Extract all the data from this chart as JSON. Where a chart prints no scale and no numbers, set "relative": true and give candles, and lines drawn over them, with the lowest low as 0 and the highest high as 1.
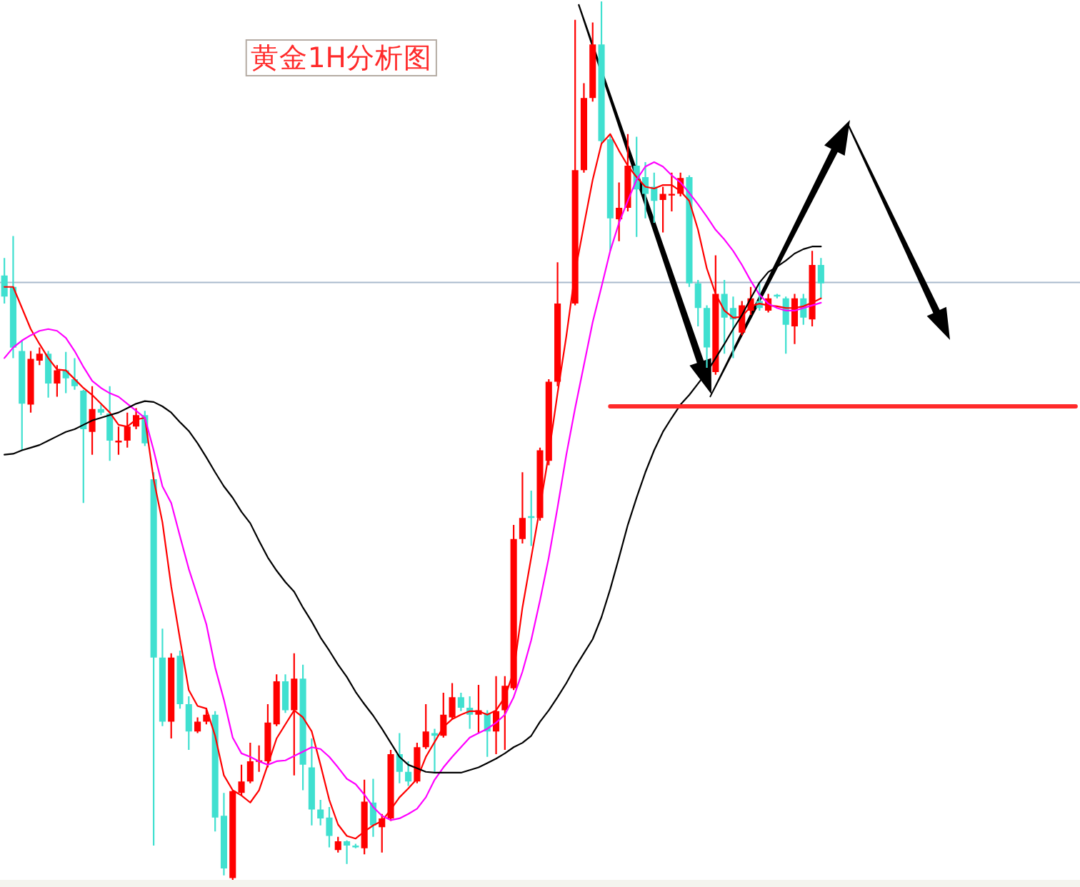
{
  "chart_data": {
    "type": "candlestick",
    "title": "黄金1H分析图",
    "relative": true,
    "categories": [
      null,
      null,
      null,
      null,
      null,
      null,
      null,
      null,
      null,
      null,
      null,
      null,
      null,
      null,
      null,
      null,
      null,
      null,
      null,
      null,
      null,
      null,
      null,
      null,
      null,
      null,
      null,
      null,
      null,
      null,
      null,
      null,
      null,
      null,
      null,
      null,
      null,
      null,
      null,
      null,
      null,
      null,
      null,
      null,
      null,
      null,
      null,
      null,
      null,
      null,
      null,
      null,
      null,
      null,
      null,
      null,
      null,
      null,
      null,
      null,
      null,
      null,
      null,
      null,
      null,
      null,
      null,
      null,
      null,
      null,
      null,
      null,
      null,
      null,
      null,
      null,
      null,
      null,
      null,
      null,
      null,
      null,
      null,
      null,
      null,
      null,
      null,
      null,
      null,
      null,
      null,
      null,
      null,
      null,
      null,
      null,
      null,
      null,
      null,
      null,
      null,
      null,
      null,
      null,
      null,
      null,
      null,
      null,
      null,
      null,
      null,
      null,
      null,
      null,
      null,
      null,
      null,
      null,
      null,
      null,
      null,
      null,
      null
    ],
    "ohlc": [
      [
        0.688,
        0.708,
        0.656,
        0.664
      ],
      [
        0.675,
        0.733,
        0.594,
        0.606
      ],
      [
        0.602,
        0.614,
        0.489,
        0.542
      ],
      [
        0.541,
        0.602,
        0.532,
        0.593
      ],
      [
        0.591,
        0.606,
        0.586,
        0.599
      ],
      [
        0.599,
        0.602,
        0.549,
        0.565
      ],
      [
        0.565,
        0.586,
        0.55,
        0.58
      ],
      [
        0.58,
        0.601,
        0.554,
        0.571
      ],
      [
        0.57,
        0.594,
        0.558,
        0.562
      ],
      [
        0.557,
        0.558,
        0.429,
        0.513
      ],
      [
        0.51,
        0.562,
        0.484,
        0.536
      ],
      [
        0.536,
        0.541,
        0.529,
        0.532
      ],
      [
        0.531,
        0.562,
        0.477,
        0.5
      ],
      [
        0.498,
        0.516,
        0.484,
        0.5
      ],
      [
        0.5,
        0.532,
        0.492,
        0.516
      ],
      [
        0.516,
        0.537,
        0.513,
        0.529
      ],
      [
        0.529,
        0.534,
        0.494,
        0.497
      ],
      [
        0.456,
        0.464,
        0.039,
        0.253
      ],
      [
        0.253,
        0.286,
        0.175,
        0.18
      ],
      [
        0.18,
        0.258,
        0.161,
        0.253
      ],
      [
        0.255,
        0.261,
        0.195,
        0.2
      ],
      [
        0.2,
        0.209,
        0.148,
        0.169
      ],
      [
        0.169,
        0.185,
        0.167,
        0.18
      ],
      [
        0.18,
        0.196,
        0.177,
        0.188
      ],
      [
        0.188,
        0.192,
        0.055,
        0.071
      ],
      [
        0.073,
        0.099,
        0.005,
        0.013
      ],
      [
        0.002,
        0.102,
        0,
        0.101
      ],
      [
        0.099,
        0.131,
        0.096,
        0.112
      ],
      [
        0.112,
        0.156,
        0.11,
        0.135
      ],
      [
        0.135,
        0.153,
        0.123,
        0.136
      ],
      [
        0.135,
        0.2,
        0.128,
        0.179
      ],
      [
        0.177,
        0.234,
        0.175,
        0.226
      ],
      [
        0.226,
        0.234,
        0.19,
        0.193
      ],
      [
        0.193,
        0.258,
        0.119,
        0.229
      ],
      [
        0.229,
        0.245,
        0.102,
        0.131
      ],
      [
        0.128,
        0.161,
        0.062,
        0.08
      ],
      [
        0.08,
        0.091,
        0.062,
        0.07
      ],
      [
        0.071,
        0.083,
        0.037,
        0.05
      ],
      [
        0.034,
        0.049,
        0.031,
        0.044
      ],
      [
        0.044,
        0.045,
        0.018,
        0.039
      ],
      [
        0.039,
        0.041,
        0.036,
        0.037
      ],
      [
        0.036,
        0.114,
        0.029,
        0.089
      ],
      [
        0.088,
        0.115,
        0.049,
        0.062
      ],
      [
        0.06,
        0.075,
        0.031,
        0.07
      ],
      [
        0.07,
        0.148,
        0.067,
        0.143
      ],
      [
        0.143,
        0.167,
        0.11,
        0.123
      ],
      [
        0.123,
        0.135,
        0.107,
        0.112
      ],
      [
        0.112,
        0.156,
        0.11,
        0.151
      ],
      [
        0.151,
        0.2,
        0.149,
        0.169
      ],
      [
        0.167,
        0.172,
        0.123,
        0.164
      ],
      [
        0.164,
        0.213,
        0.162,
        0.188
      ],
      [
        0.185,
        0.224,
        0.183,
        0.208
      ],
      [
        0.208,
        0.213,
        0.192,
        0.196
      ],
      [
        0.196,
        0.209,
        0.172,
        0.188
      ],
      [
        0.188,
        0.222,
        0.167,
        0.193
      ],
      [
        0.19,
        0.193,
        0.14,
        0.169
      ],
      [
        0.169,
        0.232,
        0.143,
        0.192
      ],
      [
        0.193,
        0.232,
        0.148,
        0.221
      ],
      [
        0.218,
        0.404,
        0.216,
        0.388
      ],
      [
        0.388,
        0.464,
        0.383,
        0.412
      ],
      [
        0.414,
        0.443,
        0.38,
        0.412
      ],
      [
        0.412,
        0.492,
        0.409,
        0.489
      ],
      [
        0.477,
        0.57,
        0.472,
        0.567
      ],
      [
        0.567,
        0.703,
        0.562,
        0.656
      ],
      null,
      [
        0.656,
        0.979,
        0.654,
        0.808
      ],
      [
        0.808,
        0.907,
        0.805,
        0.89
      ],
      [
        0.89,
        0.976,
        0.886,
        0.951
      ],
      [
        0.951,
        1,
        0.838,
        0.841
      ],
      [
        0.843,
        0.849,
        0.716,
        0.753
      ],
      [
        0.752,
        0.794,
        0.727,
        0.765
      ],
      [
        0.765,
        0.849,
        0.761,
        0.813
      ],
      [
        0.813,
        0.846,
        0.732,
        0.786
      ],
      [
        0.8,
        0.817,
        0.753,
        0.781
      ],
      [
        0.789,
        0.805,
        0.748,
        0.773
      ],
      [
        0.774,
        0.789,
        0.737,
        0.781
      ],
      [
        0.779,
        0.805,
        0.761,
        0.781
      ],
      [
        0.781,
        0.805,
        0.778,
        0.799
      ],
      [
        0.8,
        0.802,
        0.675,
        0.679
      ],
      [
        0.679,
        0.683,
        0.63,
        0.651
      ],
      [
        0.651,
        0.654,
        0.583,
        0.606
      ],
      [
        0.578,
        0.711,
        0.575,
        0.667
      ],
      [
        0.667,
        0.683,
        0.599,
        0.64
      ],
      [
        0.651,
        0.664,
        0.594,
        0.638
      ],
      [
        0.623,
        0.659,
        0.62,
        0.654
      ],
      [
        0.648,
        0.675,
        0.643,
        0.662
      ],
      [
        0.659,
        0.679,
        0.648,
        0.651
      ],
      [
        0.648,
        0.667,
        0.646,
        0.662
      ],
      [
        0.666,
        0.667,
        0.662,
        0.664
      ],
      [
        0.662,
        0.664,
        0.599,
        0.632
      ],
      [
        0.63,
        0.667,
        0.61,
        0.662
      ],
      [
        0.662,
        0.667,
        0.632,
        0.64
      ],
      [
        0.638,
        0.716,
        0.63,
        0.7
      ],
      [
        0.7,
        0.708,
        0.662,
        0.679
      ],
      null,
      null,
      null,
      null,
      null,
      null,
      null,
      null,
      null,
      null,
      null,
      null,
      null,
      null,
      null,
      null,
      null,
      null,
      null,
      null,
      null,
      null,
      null,
      null,
      null,
      null,
      null,
      null,
      null
    ],
    "colors": [
      "#40e0d0",
      "#40e0d0",
      "#40e0d0",
      "#ff0000",
      "#ff0000",
      "#40e0d0",
      "#ff0000",
      "#40e0d0",
      "#40e0d0",
      "#40e0d0",
      "#ff0000",
      "#40e0d0",
      "#40e0d0",
      "#ff0000",
      "#ff0000",
      "#ff0000",
      "#40e0d0",
      "#40e0d0",
      "#40e0d0",
      "#ff0000",
      "#40e0d0",
      "#40e0d0",
      "#ff0000",
      "#ff0000",
      "#40e0d0",
      "#40e0d0",
      "#ff0000",
      "#ff0000",
      "#ff0000",
      "#ff0000",
      "#ff0000",
      "#ff0000",
      "#40e0d0",
      "#ff0000",
      "#40e0d0",
      "#40e0d0",
      "#40e0d0",
      "#40e0d0",
      "#ff0000",
      "#40e0d0",
      "#40e0d0",
      "#ff0000",
      "#40e0d0",
      "#ff0000",
      "#ff0000",
      "#40e0d0",
      "#40e0d0",
      "#ff0000",
      "#ff0000",
      "#40e0d0",
      "#ff0000",
      "#ff0000",
      "#40e0d0",
      "#40e0d0",
      "#ff0000",
      "#40e0d0",
      "#ff0000",
      "#ff0000",
      "#ff0000",
      "#ff0000",
      "#40e0d0",
      "#ff0000",
      "#ff0000",
      "#ff0000",
      null,
      "#ff0000",
      "#ff0000",
      "#ff0000",
      "#40e0d0",
      "#40e0d0",
      "#ff0000",
      "#ff0000",
      "#40e0d0",
      "#40e0d0",
      "#40e0d0",
      "#ff0000",
      "#ff0000",
      "#ff0000",
      "#40e0d0",
      "#40e0d0",
      "#40e0d0",
      "#ff0000",
      "#40e0d0",
      "#40e0d0",
      "#ff0000",
      "#ff0000",
      "#40e0d0",
      "#ff0000",
      "#40e0d0",
      "#40e0d0",
      "#ff0000",
      "#40e0d0",
      "#ff0000",
      "#40e0d0",
      null,
      null,
      null,
      null,
      null,
      null,
      null,
      null,
      null,
      null,
      null,
      null,
      null,
      null,
      null,
      null,
      null,
      null,
      null,
      null,
      null,
      null,
      null,
      null,
      null,
      null,
      null,
      null,
      null
    ],
    "series": [
      {
        "type": "line",
        "color": "#ff0000",
        "values": [
          0.675,
          0.675,
          0.651,
          0.627,
          0.61,
          0.594,
          0.581,
          0.58,
          0.57,
          0.56,
          0.552,
          0.542,
          0.532,
          0.518,
          0.516,
          0.524,
          0.526,
          0.456,
          0.407,
          0.334,
          0.274,
          0.216,
          0.198,
          0.195,
          0.164,
          0.119,
          0.102,
          0.096,
          0.088,
          0.102,
          0.131,
          0.161,
          0.177,
          0.193,
          0.185,
          0.169,
          0.131,
          0.091,
          0.063,
          0.05,
          0.047,
          0.055,
          0.062,
          0.067,
          0.08,
          0.094,
          0.104,
          0.115,
          0.14,
          0.157,
          0.174,
          0.183,
          0.188,
          0.192,
          0.192,
          0.188,
          0.193,
          0.208,
          0.237,
          0.31,
          0.367,
          0.424,
          0.485,
          0.554,
          0.619,
          0.692,
          0.745,
          0.797,
          0.838,
          0.849,
          0.83,
          0.813,
          0.8,
          0.789,
          0.787,
          0.791,
          0.791,
          0.784,
          0.773,
          0.74,
          0.696,
          0.667,
          0.648,
          0.64,
          0.641,
          0.653,
          0.656,
          0.654,
          0.653,
          0.651,
          0.651,
          0.653,
          0.657,
          0.662,
          null,
          null,
          null,
          null,
          null,
          null,
          null,
          null,
          null,
          null,
          null,
          null,
          null,
          null,
          null,
          null,
          null,
          null,
          null,
          null,
          null,
          null,
          null,
          null,
          null,
          null,
          null,
          null,
          null
        ]
      },
      {
        "type": "line",
        "color": "#ff00ff",
        "values": [
          0.594,
          0.606,
          0.614,
          0.62,
          0.625,
          0.627,
          0.625,
          0.617,
          0.602,
          0.584,
          0.568,
          0.56,
          0.554,
          0.55,
          0.542,
          0.534,
          0.526,
          0.489,
          0.448,
          0.429,
          0.391,
          0.354,
          0.323,
          0.291,
          0.242,
          0.205,
          0.162,
          0.144,
          0.14,
          0.135,
          0.131,
          0.135,
          0.136,
          0.141,
          0.146,
          0.151,
          0.149,
          0.14,
          0.128,
          0.115,
          0.109,
          0.097,
          0.083,
          0.073,
          0.068,
          0.07,
          0.075,
          0.081,
          0.094,
          0.114,
          0.128,
          0.14,
          0.151,
          0.162,
          0.167,
          0.172,
          0.179,
          0.188,
          0.208,
          0.237,
          0.273,
          0.318,
          0.367,
          0.424,
          0.484,
          0.537,
          0.586,
          0.635,
          0.675,
          0.716,
          0.748,
          0.773,
          0.797,
          0.812,
          0.817,
          0.812,
          0.802,
          0.794,
          0.782,
          0.769,
          0.755,
          0.74,
          0.729,
          0.716,
          0.7,
          0.682,
          0.666,
          0.656,
          0.651,
          0.648,
          0.648,
          0.651,
          0.654,
          0.657,
          null,
          null,
          null,
          null,
          null,
          null,
          null,
          null,
          null,
          null,
          null,
          null,
          null,
          null,
          null,
          null,
          null,
          null,
          null,
          null,
          null,
          null,
          null,
          null,
          null,
          null,
          null,
          null,
          null
        ]
      },
      {
        "type": "line",
        "color": "#000000",
        "values": [
          0.484,
          0.485,
          0.489,
          0.492,
          0.495,
          0.5,
          0.505,
          0.51,
          0.513,
          0.518,
          0.523,
          0.526,
          0.529,
          0.532,
          0.537,
          0.542,
          0.545,
          0.544,
          0.539,
          0.532,
          0.521,
          0.511,
          0.497,
          0.481,
          0.464,
          0.448,
          0.435,
          0.419,
          0.406,
          0.386,
          0.367,
          0.352,
          0.339,
          0.328,
          0.31,
          0.294,
          0.276,
          0.261,
          0.245,
          0.231,
          0.214,
          0.2,
          0.187,
          0.172,
          0.156,
          0.14,
          0.131,
          0.127,
          0.123,
          0.122,
          0.122,
          0.122,
          0.122,
          0.125,
          0.128,
          0.133,
          0.138,
          0.144,
          0.151,
          0.156,
          0.164,
          0.18,
          0.193,
          0.208,
          0.224,
          0.242,
          0.258,
          0.274,
          0.299,
          0.331,
          0.367,
          0.404,
          0.435,
          0.464,
          0.489,
          0.51,
          0.526,
          0.541,
          0.552,
          0.565,
          0.578,
          0.594,
          0.61,
          0.627,
          0.643,
          0.662,
          0.68,
          0.692,
          0.698,
          0.705,
          0.713,
          0.718,
          0.721,
          0.721,
          null,
          null,
          null,
          null,
          null,
          null,
          null,
          null,
          null,
          null,
          null,
          null,
          null,
          null,
          null,
          null,
          null,
          null,
          null,
          null,
          null,
          null,
          null,
          null,
          null,
          null,
          null,
          null,
          null
        ]
      },
      {
        "type": "line",
        "color": "#ff2a2a",
        "values": [
          null,
          null,
          null,
          null,
          null,
          null,
          null,
          null,
          null,
          null,
          null,
          null,
          null,
          null,
          null,
          null,
          null,
          null,
          null,
          null,
          null,
          null,
          null,
          null,
          null,
          null,
          null,
          null,
          null,
          null,
          null,
          null,
          null,
          null,
          null,
          null,
          null,
          null,
          null,
          null,
          null,
          null,
          null,
          null,
          null,
          null,
          null,
          null,
          null,
          null,
          null,
          null,
          null,
          null,
          null,
          null,
          null,
          null,
          null,
          null,
          null,
          null,
          null,
          null,
          null,
          null,
          null,
          null,
          null,
          0.539,
          0.539,
          0.539,
          0.539,
          0.539,
          0.539,
          0.539,
          0.539,
          0.539,
          0.539,
          0.539,
          0.539,
          0.539,
          0.539,
          0.539,
          0.539,
          0.539,
          0.539,
          0.539,
          0.539,
          0.539,
          0.539,
          0.539,
          0.539,
          0.539,
          0.539,
          0.539,
          0.539,
          0.539,
          0.539,
          0.539,
          0.539,
          0.539,
          0.539,
          0.539,
          0.539,
          0.539,
          0.539,
          0.539,
          0.539,
          0.539,
          0.539,
          0.539,
          0.539,
          0.539,
          0.539,
          0.539,
          0.539,
          0.539,
          0.539,
          0.539,
          0.539,
          0.539,
          0.539
        ]
      }
    ],
    "ref_lines": [
      {
        "axis": "y",
        "value": 0.68,
        "color": "#a9bacd"
      }
    ]
  }
}
